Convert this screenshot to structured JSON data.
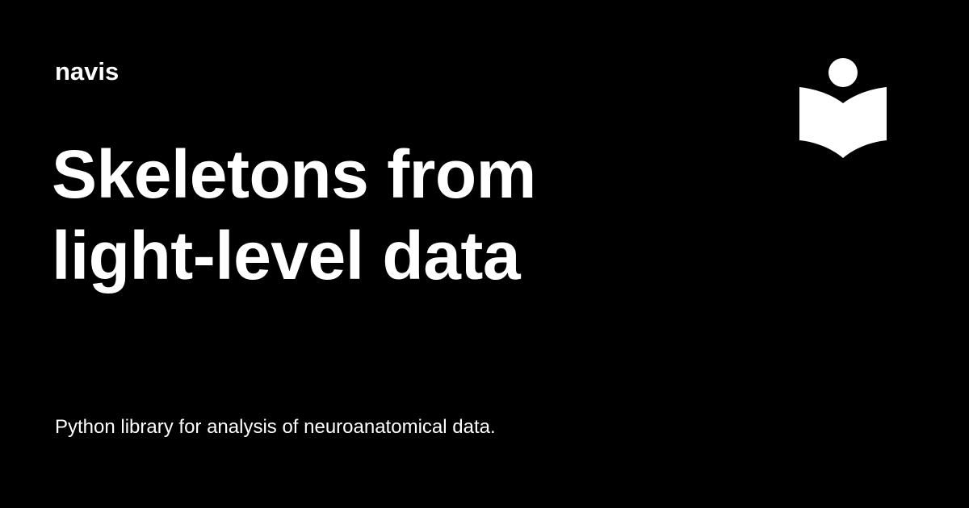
{
  "site": {
    "name": "navis"
  },
  "page": {
    "title_lines": [
      "Skeletons from",
      "light-level data"
    ],
    "description": "Python library for analysis of neuroanatomical data."
  },
  "logo": {
    "icon": "reader-book-icon",
    "color": "#ffffff"
  },
  "colors": {
    "background": "#000000",
    "text": "#ffffff"
  }
}
